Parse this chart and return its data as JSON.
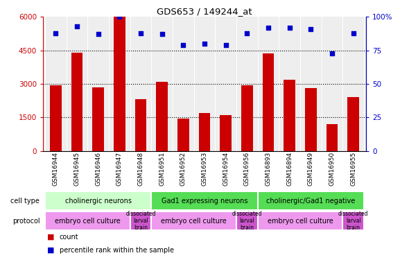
{
  "title": "GDS653 / 149244_at",
  "samples": [
    "GSM16944",
    "GSM16945",
    "GSM16946",
    "GSM16947",
    "GSM16948",
    "GSM16951",
    "GSM16952",
    "GSM16953",
    "GSM16954",
    "GSM16956",
    "GSM16893",
    "GSM16894",
    "GSM16949",
    "GSM16950",
    "GSM16955"
  ],
  "counts": [
    2950,
    4400,
    2850,
    6000,
    2300,
    3100,
    1450,
    1700,
    1600,
    2950,
    4350,
    3200,
    2800,
    1200,
    2400
  ],
  "percentiles": [
    88,
    93,
    87,
    100,
    88,
    87,
    79,
    80,
    79,
    88,
    92,
    92,
    91,
    73,
    88
  ],
  "bar_color": "#cc0000",
  "dot_color": "#0000cc",
  "ylim_left": [
    0,
    6000
  ],
  "ylim_right": [
    0,
    100
  ],
  "yticks_left": [
    0,
    1500,
    3000,
    4500,
    6000
  ],
  "yticks_right": [
    0,
    25,
    50,
    75,
    100
  ],
  "cell_type_groups": [
    {
      "label": "cholinergic neurons",
      "start": 0,
      "end": 4,
      "color": "#ccffcc"
    },
    {
      "label": "Gad1 expressing neurons",
      "start": 5,
      "end": 9,
      "color": "#44dd44"
    },
    {
      "label": "cholinergic/Gad1 negative",
      "start": 10,
      "end": 14,
      "color": "#44dd44"
    }
  ],
  "protocol_groups": [
    {
      "label": "embryo cell culture",
      "start": 0,
      "end": 3,
      "color": "#ee88ee"
    },
    {
      "label": "dissociated\nlarval\nbrain",
      "start": 4,
      "end": 4,
      "color": "#cc44cc"
    },
    {
      "label": "embryo cell culture",
      "start": 5,
      "end": 8,
      "color": "#ee88ee"
    },
    {
      "label": "dissociated\nlarval\nbrain",
      "start": 9,
      "end": 9,
      "color": "#cc44cc"
    },
    {
      "label": "embryo cell culture",
      "start": 10,
      "end": 13,
      "color": "#ee88ee"
    },
    {
      "label": "dissociated\nlarval\nbrain",
      "start": 14,
      "end": 14,
      "color": "#cc44cc"
    }
  ],
  "legend_items": [
    {
      "label": "count",
      "color": "#cc0000"
    },
    {
      "label": "percentile rank within the sample",
      "color": "#0000cc"
    }
  ]
}
